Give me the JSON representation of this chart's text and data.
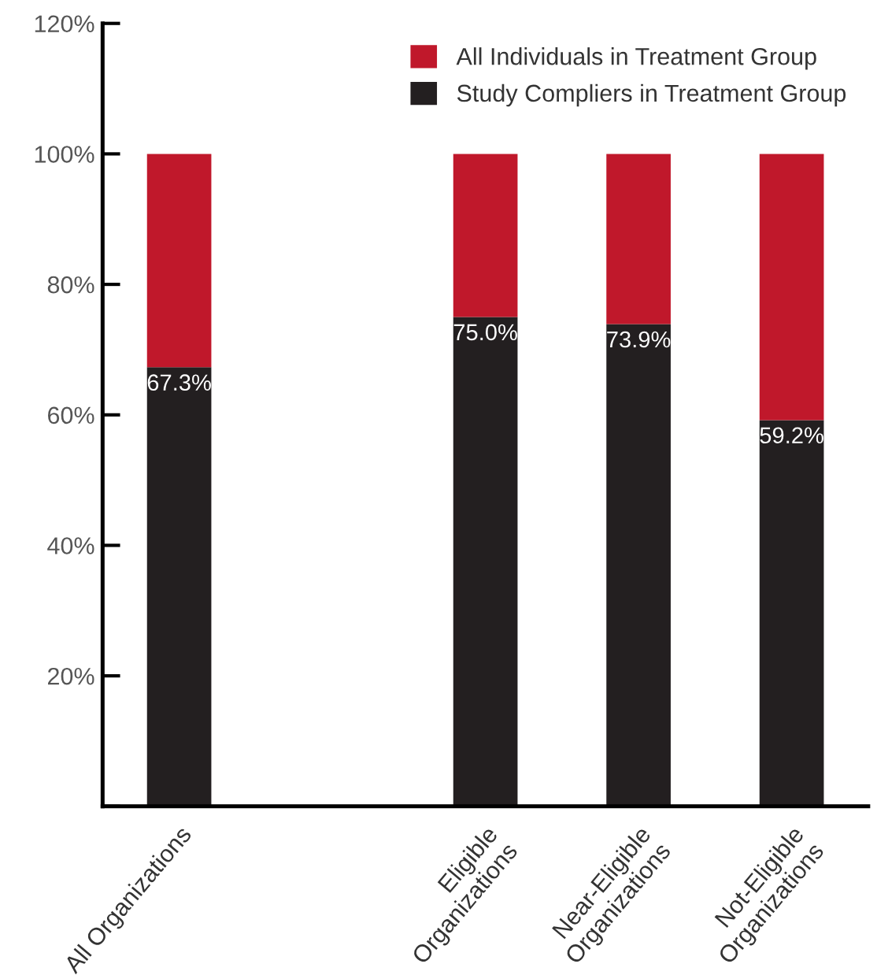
{
  "chart_data": {
    "type": "bar",
    "stacked": true,
    "categories": [
      "All Organizations",
      null,
      "Eligible\nOrganizations",
      "Near-Eligible\nOrganizations",
      "Not-Eligible\nOrganizations"
    ],
    "series": [
      {
        "name": "Study Compliers in Treatment Group",
        "color": "#231f20",
        "values": [
          67.3,
          null,
          75.0,
          73.9,
          59.2
        ],
        "value_labels": [
          "67.3%",
          null,
          "75.0%",
          "73.9%",
          "59.2%"
        ]
      },
      {
        "name": "All Individuals in Treatment Group",
        "color": "#c0182b",
        "values": [
          32.7,
          null,
          25.0,
          26.1,
          40.8
        ]
      }
    ],
    "ylim": [
      0,
      120
    ],
    "yticks": [
      {
        "value": 0,
        "label": null
      },
      {
        "value": 20,
        "label": "20%"
      },
      {
        "value": 40,
        "label": "40%"
      },
      {
        "value": 60,
        "label": "60%"
      },
      {
        "value": 80,
        "label": "80%"
      },
      {
        "value": 100,
        "label": "100%"
      },
      {
        "value": 120,
        "label": "120%"
      }
    ],
    "legend": "top right"
  }
}
